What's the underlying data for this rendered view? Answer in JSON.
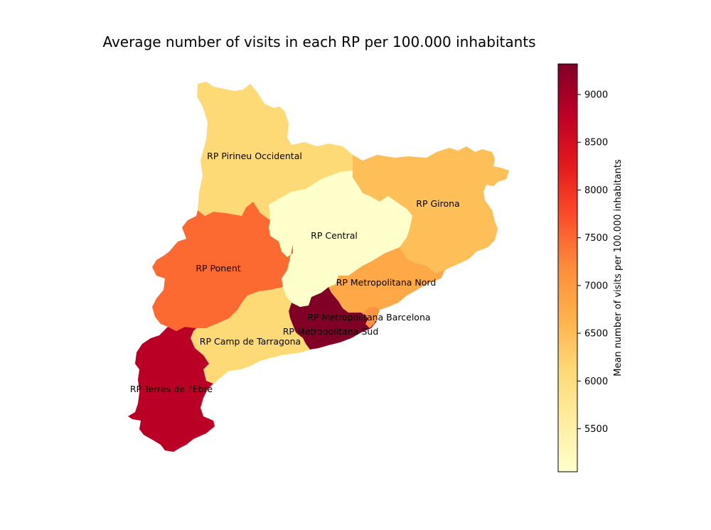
{
  "title": "Average number of visits in each RP per 100.000 inhabitants",
  "colorbar": {
    "label": "Mean number of visits per 100.000 inhabitants",
    "min": 5050,
    "max": 9320,
    "ticks": [
      5500,
      6000,
      6500,
      7000,
      7500,
      8000,
      8500,
      9000
    ],
    "colormap": "YlOrRd",
    "colors": [
      "#ffffcc",
      "#ffeda0",
      "#fed976",
      "#feb24c",
      "#fd8d3c",
      "#fc4e2a",
      "#e31a1c",
      "#bd0026",
      "#800026"
    ]
  },
  "chart_data": {
    "type": "choropleth",
    "value_label": "Mean number of visits per 100.000 inhabitants",
    "regions": [
      {
        "name": "RP Pirineu Occidental",
        "value": 6100
      },
      {
        "name": "RP Girona",
        "value": 6480
      },
      {
        "name": "RP Central",
        "value": 5050
      },
      {
        "name": "RP Ponent",
        "value": 7480
      },
      {
        "name": "RP Metropolitana Nord",
        "value": 6800
      },
      {
        "name": "RP Metropolitana Barcelona",
        "value": 9320
      },
      {
        "name": "RP Metropolitana Sud",
        "value": 7100
      },
      {
        "name": "RP Camp de Tarragona",
        "value": 6100
      },
      {
        "name": "RP Terres de l'Ebre",
        "value": 8800
      }
    ]
  }
}
